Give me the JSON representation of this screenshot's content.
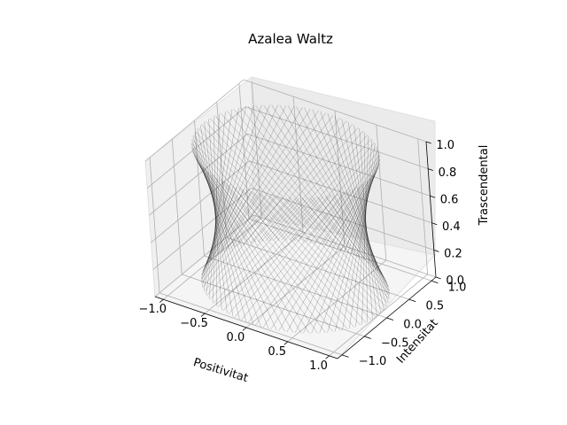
{
  "chart_data": {
    "type": "surface3d",
    "title": "Azalea Waltz",
    "xlabel": "Positivitat",
    "ylabel": "Intensitat",
    "zlabel": "Trascendental",
    "xlim": [
      -1.1,
      1.1
    ],
    "ylim": [
      -1.1,
      1.1
    ],
    "zlim": [
      0.0,
      1.0
    ],
    "x_ticks": [
      "−1.0",
      "−0.5",
      "0.0",
      "0.5",
      "1.0"
    ],
    "y_ticks": [
      "−1.0",
      "−0.5",
      "0.0",
      "0.5",
      "1.0"
    ],
    "z_ticks": [
      "0.0",
      "0.2",
      "0.4",
      "0.6",
      "0.8",
      "1.0"
    ],
    "grid": true,
    "surface": {
      "shape": "hyperboloid of one sheet (ruled lines)",
      "radius_at_z0": 1.0,
      "radius_at_z05": 0.8,
      "radius_at_z1": 1.0,
      "line_color": "#000000",
      "line_opacity": 0.35
    },
    "pane_color": "#f2f2f2",
    "grid_color": "#b0b0b0"
  }
}
